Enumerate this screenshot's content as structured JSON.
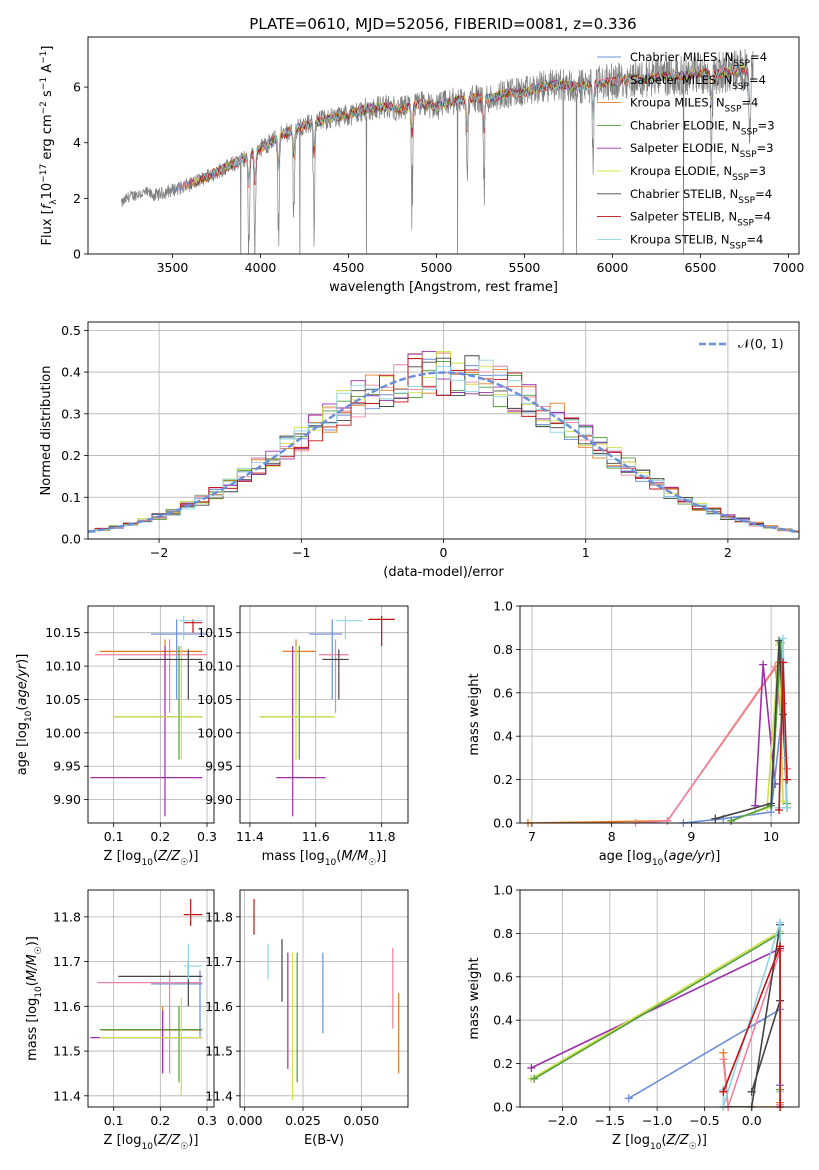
{
  "colors": {
    "Chabrier MILES": "#6a8fd8",
    "Salpeter MILES": "#f081a0",
    "Kroupa MILES": "#e57b26",
    "Chabrier ELODIE": "#4f9e3a",
    "Salpeter ELODIE": "#9c2ea8",
    "Kroupa ELODIE": "#cfe04a",
    "Chabrier STELIB": "#444444",
    "Salpeter STELIB": "#c21414",
    "Kroupa STELIB": "#8fd4e8",
    "data": "#808080",
    "normal": "#6a8fd8",
    "grid": "#b0b0b0"
  },
  "figure_title": "PLATE=0610, MJD=52056, FIBERID=0081, z=0.336",
  "legend": [
    {
      "name": "Chabrier MILES, N",
      "sub": "SSP",
      "suffix": "=4",
      "color_key": "Chabrier MILES"
    },
    {
      "name": "Salpeter MILES, N",
      "sub": "SSP",
      "suffix": "=4",
      "color_key": "Salpeter MILES"
    },
    {
      "name": "Kroupa MILES, N",
      "sub": "SSP",
      "suffix": "=4",
      "color_key": "Kroupa MILES"
    },
    {
      "name": "Chabrier ELODIE, N",
      "sub": "SSP",
      "suffix": "=3",
      "color_key": "Chabrier ELODIE"
    },
    {
      "name": "Salpeter ELODIE, N",
      "sub": "SSP",
      "suffix": "=3",
      "color_key": "Salpeter ELODIE"
    },
    {
      "name": "Kroupa ELODIE, N",
      "sub": "SSP",
      "suffix": "=3",
      "color_key": "Kroupa ELODIE"
    },
    {
      "name": "Chabrier STELIB, N",
      "sub": "SSP",
      "suffix": "=4",
      "color_key": "Chabrier STELIB"
    },
    {
      "name": "Salpeter STELIB, N",
      "sub": "SSP",
      "suffix": "=4",
      "color_key": "Salpeter STELIB"
    },
    {
      "name": "Kroupa STELIB, N",
      "sub": "SSP",
      "suffix": "=4",
      "color_key": "Kroupa STELIB"
    }
  ],
  "chart_data": [
    {
      "id": "spectrum",
      "type": "line",
      "xlabel": "wavelength [Angstrom, rest frame]",
      "ylabel": "Flux [fλ 10⁻¹⁷ erg cm⁻² s⁻¹ A⁻¹]",
      "xlim": [
        3020,
        7060
      ],
      "ylim": [
        0,
        7.8
      ],
      "xticks": [
        3500,
        4000,
        4500,
        5000,
        5500,
        6000,
        6500,
        7000
      ],
      "yticks": [
        0,
        2,
        4,
        6
      ],
      "grid": false,
      "legend_position": "top-right",
      "x_range": [
        3210,
        6800
      ],
      "continuum": {
        "x": [
          3210,
          3250,
          3300,
          3350,
          3400,
          3450,
          3500,
          3600,
          3700,
          3800,
          3900,
          4000,
          4100,
          4200,
          4300,
          4400,
          4500,
          4600,
          4700,
          4800,
          4900,
          5000,
          5100,
          5200,
          5300,
          5400,
          5500,
          5600,
          5700,
          5800,
          5900,
          6000,
          6100,
          6200,
          6300,
          6400,
          6500,
          6600,
          6700,
          6800
        ],
        "y": [
          1.8,
          2.05,
          2.15,
          2.2,
          2.1,
          2.2,
          2.3,
          2.5,
          2.8,
          3.1,
          3.4,
          3.8,
          4.2,
          4.5,
          4.7,
          4.9,
          5.0,
          5.2,
          5.3,
          5.2,
          5.4,
          5.3,
          5.5,
          5.6,
          5.6,
          5.8,
          5.8,
          6.0,
          6.1,
          6.0,
          6.1,
          6.2,
          6.3,
          6.3,
          6.4,
          6.4,
          6.5,
          6.5,
          6.6,
          6.6
        ]
      },
      "absorption_features": [
        3934,
        3969,
        4102,
        4190,
        4304,
        4861,
        5175,
        5270,
        5890,
        6563,
        6780
      ]
    },
    {
      "id": "residuals",
      "type": "line",
      "xlabel": "(data-model)/error",
      "ylabel": "Normed distribution",
      "xlim": [
        -2.5,
        2.5
      ],
      "ylim": [
        0,
        0.52
      ],
      "xticks": [
        -2,
        -1,
        0,
        1,
        2
      ],
      "yticks": [
        0.0,
        0.1,
        0.2,
        0.3,
        0.4,
        0.5
      ],
      "grid": true,
      "legend_position": "top-right",
      "series": [
        {
          "name": "𝒩(0, 1)",
          "mean": 0,
          "sigma": 1
        }
      ],
      "bin_width": 0.1
    },
    {
      "id": "age-vs-Z",
      "type": "scatter",
      "xlabel": "Z [log₁₀(Z/Z☉)]",
      "ylabel": "age  [log₁₀(age/yr)]",
      "xlim": [
        0.045,
        0.315
      ],
      "ylim": [
        9.865,
        10.19
      ],
      "xticks": [
        0.1,
        0.2,
        0.3
      ],
      "yticks": [
        9.9,
        9.95,
        10.0,
        10.05,
        10.1,
        10.15
      ],
      "grid": true,
      "points": [
        {
          "series": "Chabrier MILES",
          "x": 0.235,
          "y": 10.148,
          "xerr": [
            0.18,
            0.3
          ],
          "yerr": [
            10.05,
            10.17
          ]
        },
        {
          "series": "Salpeter MILES",
          "x": 0.22,
          "y": 10.117,
          "xerr": [
            0.06,
            0.3
          ],
          "yerr": [
            10.03,
            10.14
          ]
        },
        {
          "series": "Kroupa MILES",
          "x": 0.21,
          "y": 10.122,
          "xerr": [
            0.07,
            0.29
          ],
          "yerr": [
            10.05,
            10.14
          ]
        },
        {
          "series": "Chabrier ELODIE",
          "x": 0.24,
          "y": 10.024,
          "xerr": [
            0.1,
            0.29
          ],
          "yerr": [
            9.96,
            10.13
          ]
        },
        {
          "series": "Salpeter ELODIE",
          "x": 0.21,
          "y": 9.933,
          "xerr": [
            0.05,
            0.29
          ],
          "yerr": [
            9.875,
            10.13
          ]
        },
        {
          "series": "Kroupa ELODIE",
          "x": 0.245,
          "y": 10.024,
          "xerr": [
            0.1,
            0.29
          ],
          "yerr": [
            9.96,
            10.13
          ]
        },
        {
          "series": "Chabrier STELIB",
          "x": 0.26,
          "y": 10.11,
          "xerr": [
            0.11,
            0.29
          ],
          "yerr": [
            10.05,
            10.125
          ]
        },
        {
          "series": "Salpeter STELIB",
          "x": 0.27,
          "y": 10.165,
          "xerr": [
            0.25,
            0.29
          ],
          "yerr": [
            10.15,
            10.17
          ]
        },
        {
          "series": "Kroupa STELIB",
          "x": 0.25,
          "y": 10.168,
          "xerr": [
            0.24,
            0.29
          ],
          "yerr": [
            10.14,
            10.175
          ]
        }
      ]
    },
    {
      "id": "age-vs-mass",
      "type": "scatter",
      "xlabel": "mass [log₁₀(M/M☉)]",
      "ylabel": "",
      "xlim": [
        11.37,
        11.88
      ],
      "ylim": [
        9.865,
        10.19
      ],
      "xticks": [
        11.4,
        11.6,
        11.8
      ],
      "yticks": [
        9.9,
        9.95,
        10.0,
        10.05,
        10.1,
        10.15
      ],
      "grid": true,
      "points": [
        {
          "series": "Chabrier MILES",
          "x": 11.65,
          "y": 10.148,
          "xerr": [
            11.58,
            11.68
          ],
          "yerr": [
            10.05,
            10.17
          ]
        },
        {
          "series": "Salpeter MILES",
          "x": 11.66,
          "y": 10.117,
          "xerr": [
            11.61,
            11.7
          ],
          "yerr": [
            10.03,
            10.14
          ]
        },
        {
          "series": "Kroupa MILES",
          "x": 11.54,
          "y": 10.122,
          "xerr": [
            11.5,
            11.6
          ],
          "yerr": [
            10.05,
            10.14
          ]
        },
        {
          "series": "Chabrier ELODIE",
          "x": 11.55,
          "y": 10.024,
          "xerr": [
            11.43,
            11.65
          ],
          "yerr": [
            9.96,
            10.13
          ]
        },
        {
          "series": "Salpeter ELODIE",
          "x": 11.53,
          "y": 9.933,
          "xerr": [
            11.48,
            11.63
          ],
          "yerr": [
            9.875,
            10.13
          ]
        },
        {
          "series": "Kroupa ELODIE",
          "x": 11.54,
          "y": 10.024,
          "xerr": [
            11.43,
            11.66
          ],
          "yerr": [
            9.96,
            10.13
          ]
        },
        {
          "series": "Chabrier STELIB",
          "x": 11.67,
          "y": 10.11,
          "xerr": [
            11.62,
            11.7
          ],
          "yerr": [
            10.05,
            10.125
          ]
        },
        {
          "series": "Salpeter STELIB",
          "x": 11.8,
          "y": 10.17,
          "xerr": [
            11.76,
            11.84
          ],
          "yerr": [
            10.13,
            10.175
          ]
        },
        {
          "series": "Kroupa STELIB",
          "x": 11.69,
          "y": 10.168,
          "xerr": [
            11.66,
            11.74
          ],
          "yerr": [
            10.14,
            10.175
          ]
        }
      ]
    },
    {
      "id": "weight-vs-age",
      "type": "line",
      "xlabel": "age  [log₁₀(age/yr)]",
      "ylabel": "mass weight",
      "xlim": [
        6.85,
        10.35
      ],
      "ylim": [
        0,
        1
      ],
      "xticks": [
        7,
        8,
        9,
        10
      ],
      "yticks": [
        0.0,
        0.2,
        0.4,
        0.6,
        0.8,
        1.0
      ],
      "grid": true,
      "series": [
        {
          "series": "Kroupa MILES",
          "x": [
            6.95,
            8.7,
            10.1,
            10.2
          ],
          "y": [
            0.0,
            0.01,
            0.74,
            0.25
          ]
        },
        {
          "series": "Salpeter MILES",
          "x": [
            8.3,
            8.7,
            10.05,
            10.2
          ],
          "y": [
            0.0,
            0.01,
            0.72,
            0.25
          ]
        },
        {
          "series": "Salpeter ELODIE",
          "x": [
            9.8,
            9.9,
            10.05
          ],
          "y": [
            0.08,
            0.73,
            0.18
          ]
        },
        {
          "series": "Chabrier MILES",
          "x": [
            8.9,
            9.4,
            10.0,
            10.15
          ],
          "y": [
            0.0,
            0.02,
            0.05,
            0.55
          ]
        },
        {
          "series": "Kroupa ELODIE",
          "x": [
            9.5,
            9.95,
            10.1,
            10.15
          ],
          "y": [
            0.01,
            0.07,
            0.82,
            0.1
          ]
        },
        {
          "series": "Chabrier ELODIE",
          "x": [
            9.5,
            10.0,
            10.12,
            10.2
          ],
          "y": [
            0.01,
            0.08,
            0.83,
            0.09
          ]
        },
        {
          "series": "Chabrier STELIB",
          "x": [
            9.3,
            10.0,
            10.1,
            10.15,
            10.2
          ],
          "y": [
            0.02,
            0.09,
            0.84,
            0.5,
            0.07
          ]
        },
        {
          "series": "Kroupa STELIB",
          "x": [
            10.1,
            10.15,
            10.18,
            10.2
          ],
          "y": [
            0.07,
            0.85,
            0.3,
            0.07
          ]
        },
        {
          "series": "Salpeter STELIB",
          "x": [
            10.1,
            10.15,
            10.2
          ],
          "y": [
            0.06,
            0.74,
            0.2
          ]
        }
      ]
    },
    {
      "id": "mass-vs-Z",
      "type": "scatter",
      "xlabel": "Z [log₁₀(Z/Z☉)]",
      "ylabel": "mass [log₁₀(M/M☉)]",
      "xlim": [
        0.045,
        0.315
      ],
      "ylim": [
        11.375,
        11.86
      ],
      "xticks": [
        0.1,
        0.2,
        0.3
      ],
      "yticks": [
        11.4,
        11.5,
        11.6,
        11.7,
        11.8
      ],
      "grid": true,
      "points": [
        {
          "series": "Chabrier MILES",
          "x": 0.285,
          "y": 11.65,
          "xerr": [
            0.18,
            0.29
          ],
          "yerr": [
            11.53,
            11.68
          ]
        },
        {
          "series": "Salpeter MILES",
          "x": 0.22,
          "y": 11.653,
          "xerr": [
            0.065,
            0.29
          ],
          "yerr": [
            11.45,
            11.68
          ]
        },
        {
          "series": "Kroupa MILES",
          "x": 0.205,
          "y": 11.547,
          "xerr": [
            0.075,
            0.29
          ],
          "yerr": [
            11.45,
            11.6
          ]
        },
        {
          "series": "Chabrier ELODIE",
          "x": 0.24,
          "y": 11.548,
          "xerr": [
            0.07,
            0.29
          ],
          "yerr": [
            11.43,
            11.6
          ]
        },
        {
          "series": "Salpeter ELODIE",
          "x": 0.205,
          "y": 11.53,
          "xerr": [
            0.05,
            0.29
          ],
          "yerr": [
            11.45,
            11.59
          ]
        },
        {
          "series": "Kroupa ELODIE",
          "x": 0.245,
          "y": 11.53,
          "xerr": [
            0.07,
            0.29
          ],
          "yerr": [
            11.4,
            11.62
          ]
        },
        {
          "series": "Chabrier STELIB",
          "x": 0.26,
          "y": 11.667,
          "xerr": [
            0.11,
            0.29
          ],
          "yerr": [
            11.6,
            11.7
          ]
        },
        {
          "series": "Salpeter STELIB",
          "x": 0.265,
          "y": 11.805,
          "xerr": [
            0.25,
            0.29
          ],
          "yerr": [
            11.78,
            11.84
          ]
        },
        {
          "series": "Kroupa STELIB",
          "x": 0.26,
          "y": 11.69,
          "xerr": [
            0.25,
            0.29
          ],
          "yerr": [
            11.66,
            11.74
          ]
        }
      ]
    },
    {
      "id": "mass-vs-EBV",
      "type": "scatter",
      "xlabel": "E(B-V)",
      "ylabel": "",
      "xlim": [
        -0.002,
        0.07
      ],
      "ylim": [
        11.375,
        11.86
      ],
      "xticks": [
        0.0,
        0.025,
        0.05
      ],
      "xtick_labels": [
        "0.000",
        "0.025",
        "0.050"
      ],
      "yticks": [
        11.4,
        11.5,
        11.6,
        11.7,
        11.8
      ],
      "grid": true,
      "points": [
        {
          "series": "Salpeter STELIB",
          "x": 0.004,
          "yerr": [
            11.76,
            11.84
          ]
        },
        {
          "series": "Kroupa STELIB",
          "x": 0.01,
          "yerr": [
            11.66,
            11.74
          ]
        },
        {
          "series": "Chabrier STELIB",
          "x": 0.016,
          "yerr": [
            11.61,
            11.75
          ]
        },
        {
          "series": "Salpeter ELODIE",
          "x": 0.0185,
          "yerr": [
            11.46,
            11.72
          ]
        },
        {
          "series": "Kroupa ELODIE",
          "x": 0.0205,
          "yerr": [
            11.39,
            11.72
          ]
        },
        {
          "series": "Chabrier ELODIE",
          "x": 0.0225,
          "yerr": [
            11.43,
            11.72
          ]
        },
        {
          "series": "Chabrier MILES",
          "x": 0.0335,
          "yerr": [
            11.54,
            11.72
          ]
        },
        {
          "series": "Salpeter MILES",
          "x": 0.0635,
          "yerr": [
            11.55,
            11.73
          ]
        },
        {
          "series": "Kroupa MILES",
          "x": 0.066,
          "yerr": [
            11.45,
            11.63
          ]
        }
      ]
    },
    {
      "id": "weight-vs-Z",
      "type": "line",
      "xlabel": "Z [log₁₀(Z/Z☉)]",
      "ylabel": "mass weight",
      "xlim": [
        -2.45,
        0.5
      ],
      "ylim": [
        0,
        1
      ],
      "xticks": [
        -2.0,
        -1.5,
        -1.0,
        -0.5,
        0.0
      ],
      "yticks": [
        0.0,
        0.2,
        0.4,
        0.6,
        0.8,
        1.0
      ],
      "grid": true,
      "series": [
        {
          "series": "Salpeter ELODIE",
          "x": [
            -2.33,
            0.3,
            0.3
          ],
          "y": [
            0.18,
            0.73,
            0.1
          ]
        },
        {
          "series": "Kroupa ELODIE",
          "x": [
            -2.33,
            0.3,
            0.3
          ],
          "y": [
            0.13,
            0.81,
            0.07
          ]
        },
        {
          "series": "Chabrier ELODIE",
          "x": [
            -2.3,
            0.3,
            0.3
          ],
          "y": [
            0.13,
            0.8,
            0.08
          ]
        },
        {
          "series": "Chabrier MILES",
          "x": [
            -1.3,
            0.3,
            0.3
          ],
          "y": [
            0.04,
            0.45,
            0.1
          ]
        },
        {
          "series": "Kroupa MILES",
          "x": [
            -0.3,
            -0.25,
            0.3,
            0.3,
            0.3
          ],
          "y": [
            0.25,
            0.0,
            0.0,
            0.74,
            0.02
          ]
        },
        {
          "series": "Salpeter MILES",
          "x": [
            -0.3,
            -0.25,
            0.3,
            0.3
          ],
          "y": [
            0.22,
            0.0,
            0.72,
            0.01
          ]
        },
        {
          "series": "Chabrier STELIB",
          "x": [
            -0.3,
            -0.3,
            0.0,
            0.3,
            0.3,
            0.0
          ],
          "y": [
            0.08,
            0.0,
            0.0,
            0.84,
            0.49,
            0.07
          ]
        },
        {
          "series": "Kroupa STELIB",
          "x": [
            -0.3,
            -0.3,
            0.3,
            0.3
          ],
          "y": [
            0.08,
            0.0,
            0.85,
            0.07
          ]
        },
        {
          "series": "Salpeter STELIB",
          "x": [
            -0.3,
            0.3,
            0.3
          ],
          "y": [
            0.07,
            0.74,
            0.0
          ]
        }
      ]
    }
  ]
}
